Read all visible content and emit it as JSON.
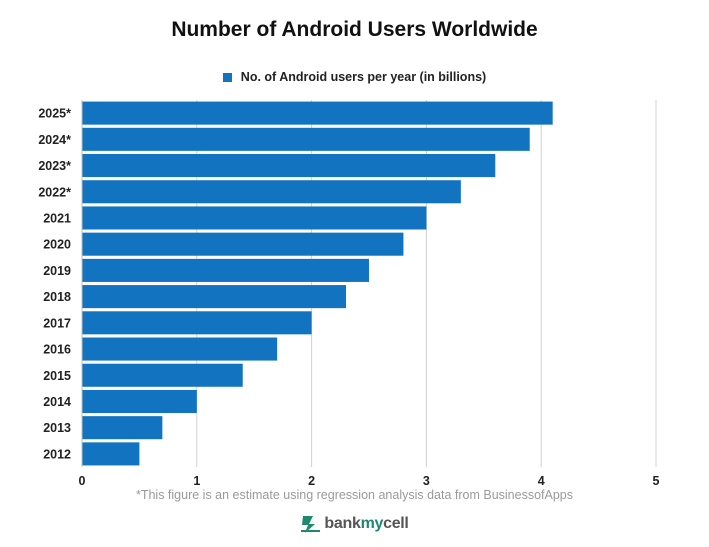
{
  "chart_data": {
    "type": "bar",
    "orientation": "horizontal",
    "title": "Number of Android Users Worldwide",
    "categories": [
      "2025*",
      "2024*",
      "2023*",
      "2022*",
      "2021",
      "2020",
      "2019",
      "2018",
      "2017",
      "2016",
      "2015",
      "2014",
      "2013",
      "2012"
    ],
    "series": [
      {
        "name": "No. of Android users per year (in billions)",
        "values": [
          4.1,
          3.9,
          3.6,
          3.3,
          3.0,
          2.8,
          2.5,
          2.3,
          2.0,
          1.7,
          1.4,
          1.0,
          0.7,
          0.5
        ]
      }
    ],
    "xlim": [
      0,
      5
    ],
    "xticks": [
      0,
      1,
      2,
      3,
      4,
      5
    ],
    "grid": "vertical",
    "legend_position": "top-center",
    "bar_color": "#1273c0",
    "grid_color": "#d0d0d0"
  },
  "footnote": "*This figure is an estimate using regression analysis data from BusinessofApps",
  "brand": {
    "name_part1": "bank",
    "name_part2": "my",
    "name_part3": "cell",
    "icon": "bankmycell-logo-icon"
  }
}
